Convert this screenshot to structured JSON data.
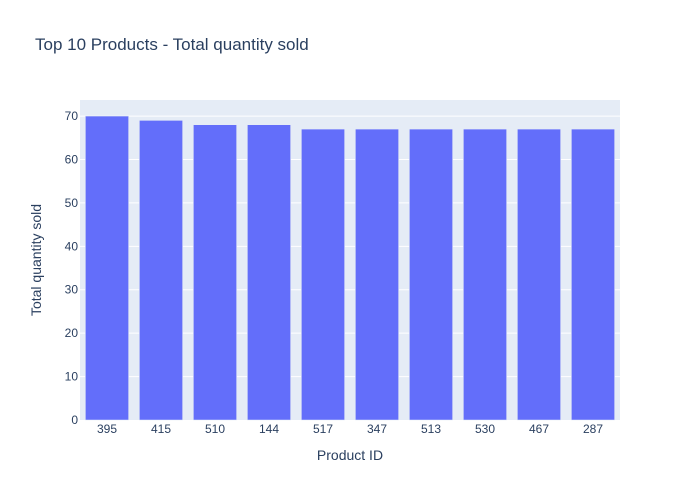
{
  "chart_data": {
    "type": "bar",
    "title": "Top 10 Products - Total quantity sold",
    "xlabel": "Product ID",
    "ylabel": "Total quantity sold",
    "categories": [
      "395",
      "415",
      "510",
      "144",
      "517",
      "347",
      "513",
      "530",
      "467",
      "287"
    ],
    "values": [
      70,
      69,
      68,
      68,
      67,
      67,
      67,
      67,
      67,
      67
    ],
    "ylim": [
      0,
      73.7
    ],
    "yticks": [
      0,
      10,
      20,
      30,
      40,
      50,
      60,
      70
    ],
    "grid": true,
    "legend": "none",
    "colors": {
      "bar": "#636efa",
      "plot_background": "#e5ecf6",
      "grid": "#ffffff",
      "text": "#2a3f5f"
    }
  }
}
